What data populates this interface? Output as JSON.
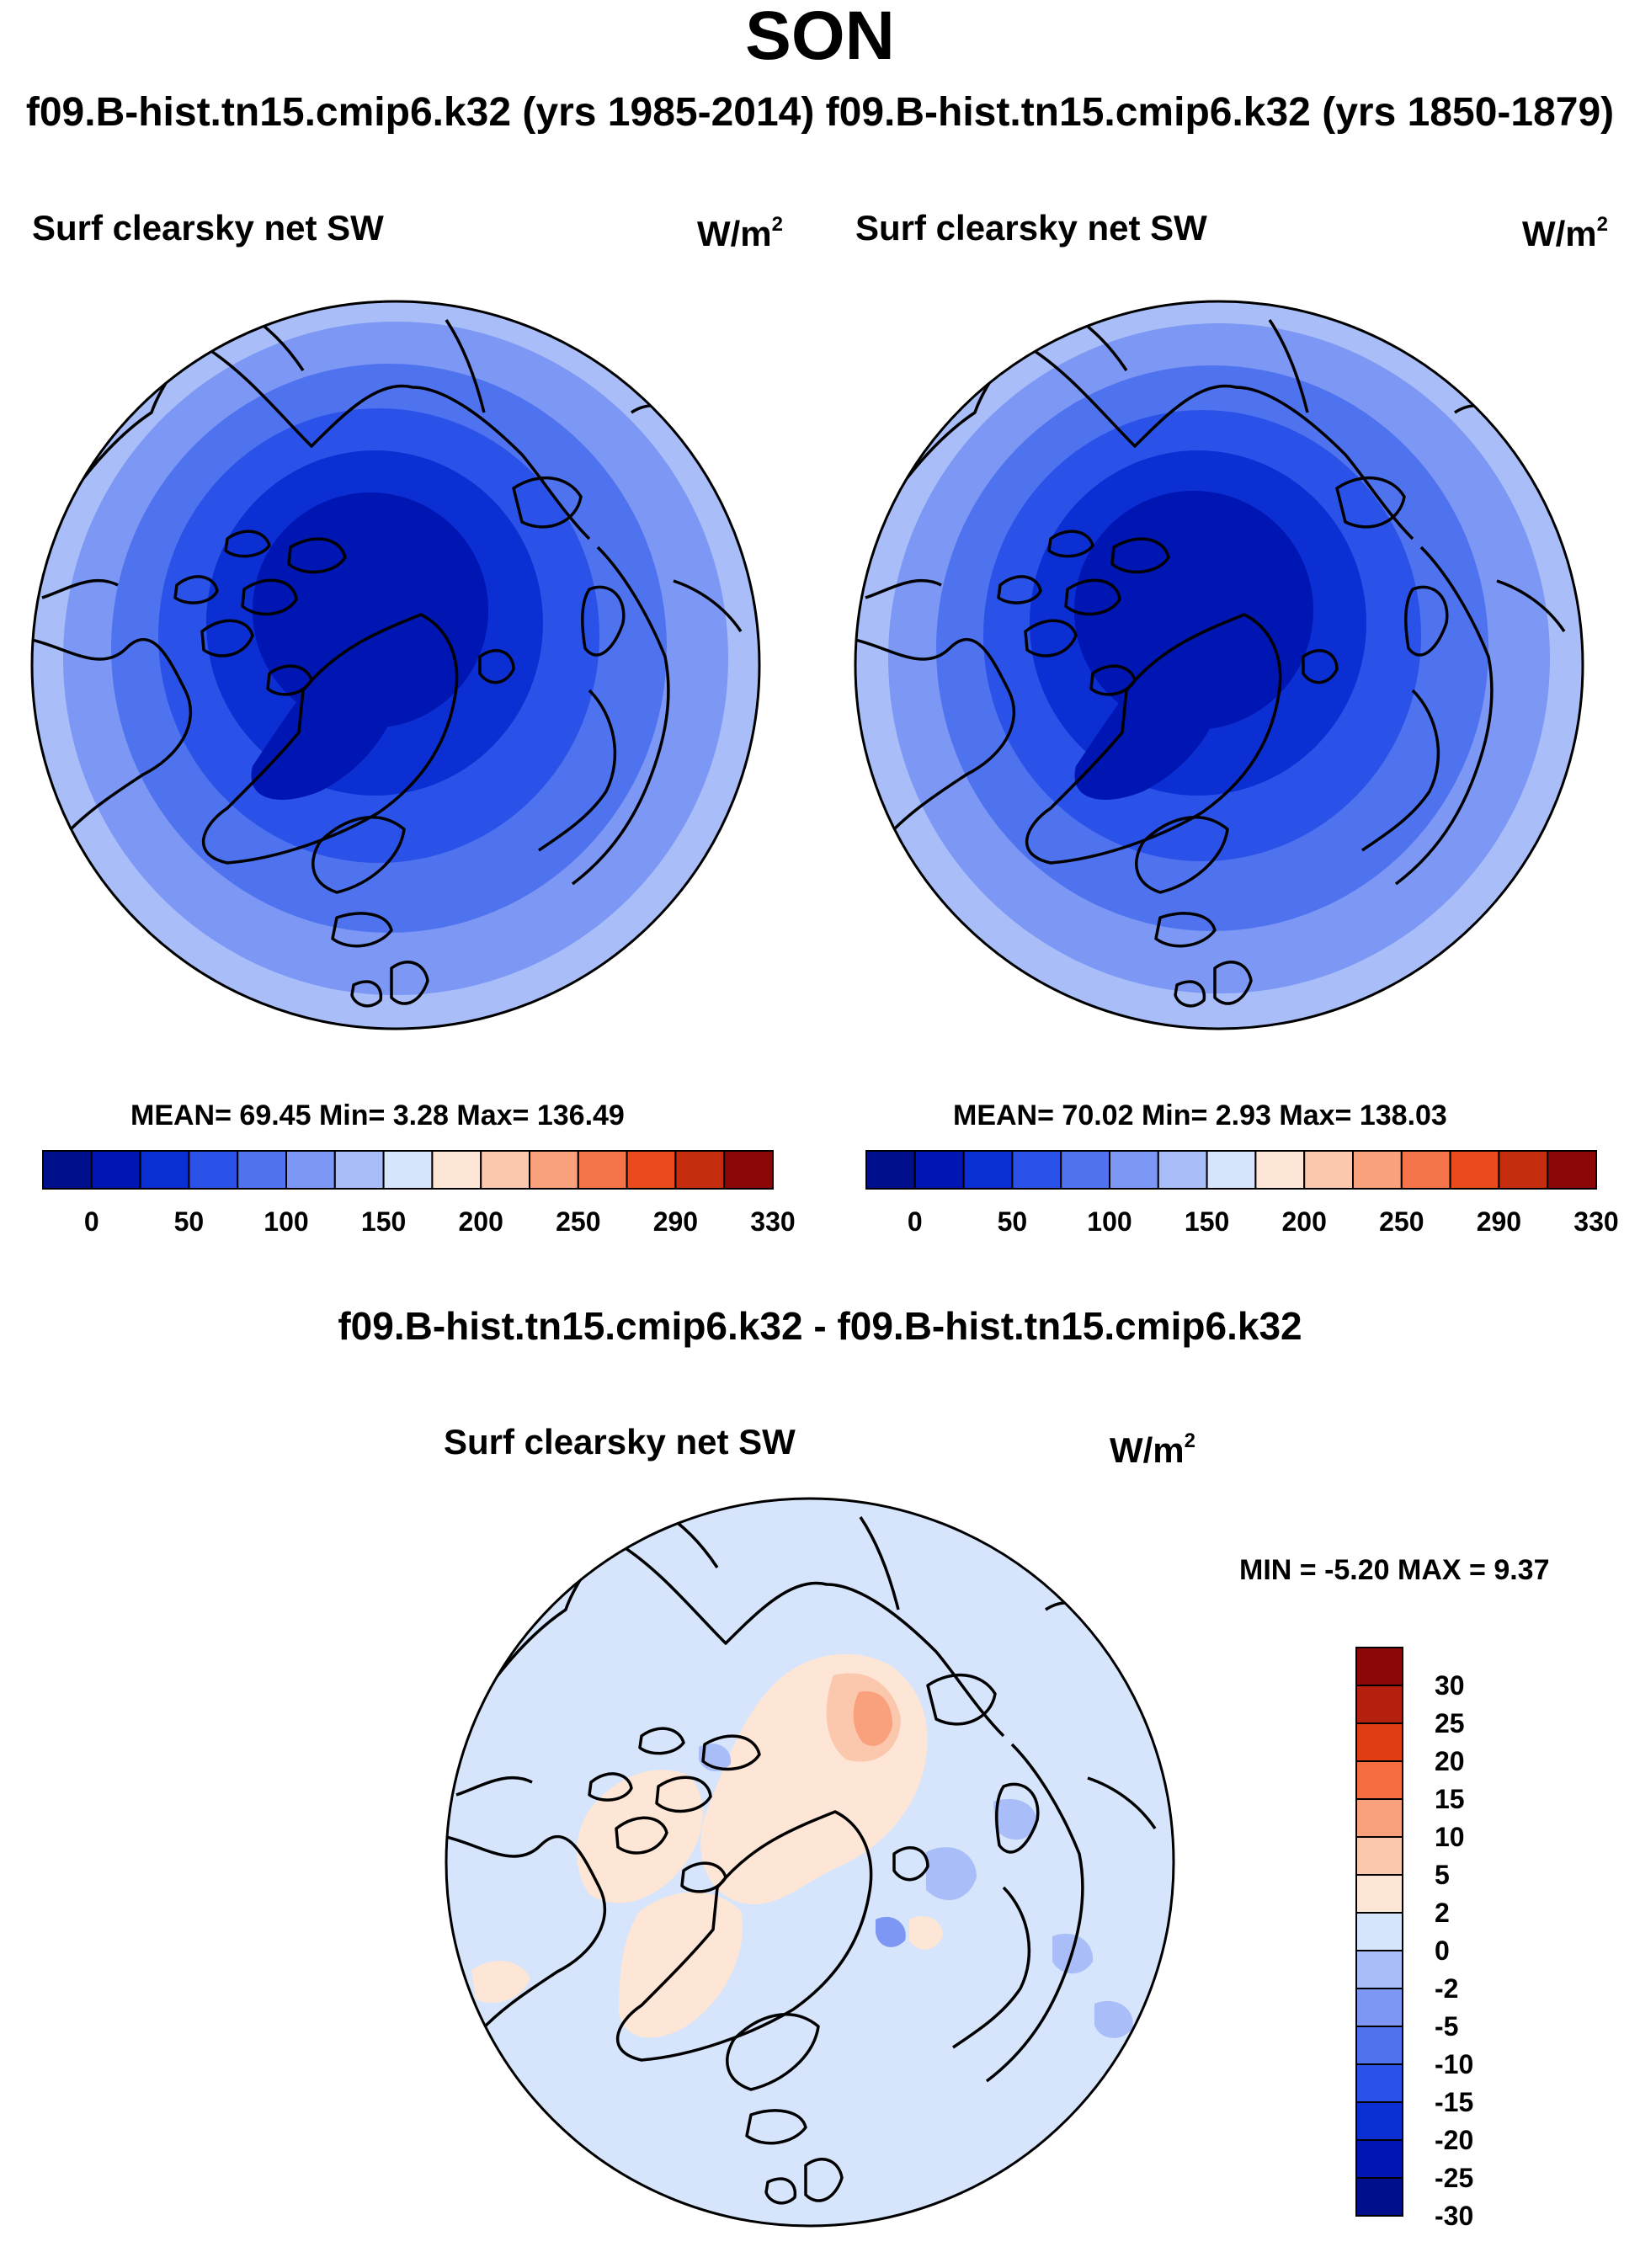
{
  "header": {
    "season": "SON",
    "cases_title": "f09.B-hist.tn15.cmip6.k32 (yrs 1985-2014) f09.B-hist.tn15.cmip6.k32 (yrs 1850-1879)",
    "diff_title": "f09.B-hist.tn15.cmip6.k32 - f09.B-hist.tn15.cmip6.k32"
  },
  "panels": [
    {
      "title": "Surf clearsky net SW",
      "units": "W/m",
      "units_exp": "2",
      "stats": "MEAN=  69.45  Min=   3.28  Max= 136.49"
    },
    {
      "title": "Surf clearsky net SW",
      "units": "W/m",
      "units_exp": "2",
      "stats": "MEAN=  70.02  Min=   2.93  Max= 138.03"
    },
    {
      "title": "Surf clearsky net SW",
      "units": "W/m",
      "units_exp": "2",
      "stats": "MIN =  -5.20 MAX =   9.37"
    }
  ],
  "colorbar_main": {
    "colors": [
      "#000f8c",
      "#0016b3",
      "#0b2fd3",
      "#2a52e8",
      "#4f73ef",
      "#7c98f4",
      "#a9bef8",
      "#d6e5fb",
      "#fde6d6",
      "#fcc8ad",
      "#f9a07c",
      "#f5744a",
      "#ea4a1c",
      "#c52d0e",
      "#8c0707"
    ],
    "tick_labels": [
      "0",
      "50",
      "100",
      "150",
      "200",
      "250",
      "290",
      "330"
    ]
  },
  "colorbar_diff": {
    "colors_top_to_bottom": [
      "#8c0707",
      "#b5200f",
      "#e13d14",
      "#f36d3f",
      "#f9a07c",
      "#fcc8ad",
      "#fde6d6",
      "#d6e5fb",
      "#a9bef8",
      "#7c98f4",
      "#4f73ef",
      "#2a52e8",
      "#0b2fd3",
      "#0016b3",
      "#000f8c"
    ],
    "tick_labels": [
      "30",
      "25",
      "20",
      "15",
      "10",
      "5",
      "2",
      "0",
      "-2",
      "-5",
      "-10",
      "-15",
      "-20",
      "-25",
      "-30"
    ]
  },
  "map_colors": {
    "p_outer": "#a9bef8",
    "p_ring2": "#7c98f4",
    "p_ring3": "#4f73ef",
    "p_ring4": "#2a52e8",
    "p_ring5": "#0b2fd3",
    "p_ring6": "#0016b3",
    "d_base": "#d6e5fb",
    "d_pos1": "#fde6d6",
    "d_pos2": "#fcc8ad",
    "d_neg": "#a9bef8",
    "coast": "#000000"
  }
}
